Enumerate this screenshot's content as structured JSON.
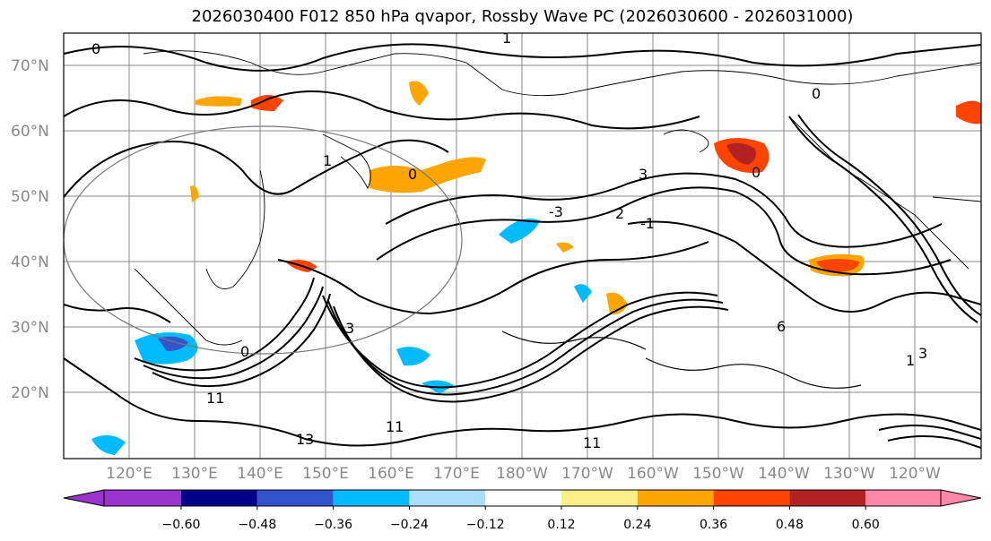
{
  "title": "2026030400 F012 850 hPa qvapor, Rossby Wave PC (2026030600 - 2026031000)",
  "map": {
    "lat_labels": [
      "70°N",
      "60°N",
      "50°N",
      "40°N",
      "30°N",
      "20°N"
    ],
    "lon_labels": [
      "120°E",
      "130°E",
      "140°E",
      "150°E",
      "160°E",
      "170°E",
      "180°W",
      "170°W",
      "160°W",
      "150°W",
      "140°W",
      "130°W",
      "120°W"
    ],
    "label_color": "#888888",
    "contour_labels": [
      "0",
      "0",
      "0",
      "1",
      "-3",
      "2",
      "3",
      "1",
      "0",
      "0",
      "3",
      "6",
      "-1",
      "11",
      "11",
      "11",
      "13",
      "1",
      "3"
    ]
  },
  "colorbar": {
    "colors": [
      "#9933cc",
      "#000088",
      "#3355cc",
      "#00bbff",
      "#aaddff",
      "#ffffff",
      "#ffee88",
      "#ffa500",
      "#ff4400",
      "#b22222",
      "#ff88aa",
      "#ff88aa"
    ],
    "under_color": "#9933cc",
    "over_color": "#ff88aa",
    "tick_labels": [
      "−0.60",
      "−0.48",
      "−0.36",
      "−0.24",
      "−0.12",
      "0.12",
      "0.24",
      "0.36",
      "0.48",
      "0.60"
    ]
  }
}
